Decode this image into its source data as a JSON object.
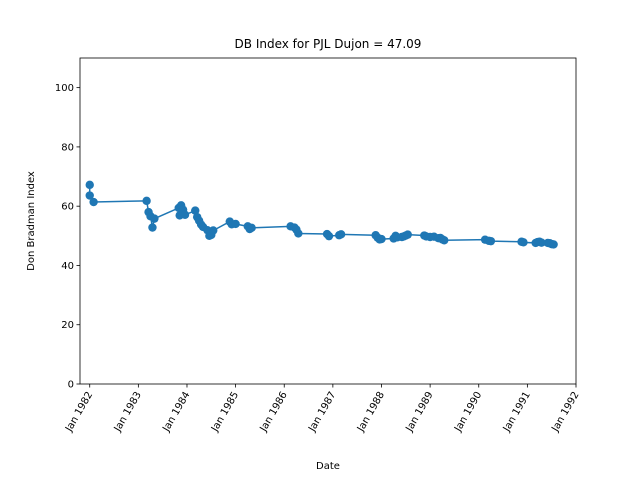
{
  "chart_data": {
    "type": "line",
    "title": "DB Index for PJL Dujon = 47.09",
    "xlabel": "Date",
    "ylabel": "Don Bradman Index",
    "xlim": [
      1981.8,
      1992.0
    ],
    "ylim": [
      0,
      110
    ],
    "yticks": [
      0,
      20,
      40,
      60,
      80,
      100
    ],
    "xticks": [
      {
        "label": "Jan 1982",
        "value": 1982.0
      },
      {
        "label": "Jan 1983",
        "value": 1983.0
      },
      {
        "label": "Jan 1984",
        "value": 1984.0
      },
      {
        "label": "Jan 1985",
        "value": 1985.0
      },
      {
        "label": "Jan 1986",
        "value": 1986.0
      },
      {
        "label": "Jan 1987",
        "value": 1987.0
      },
      {
        "label": "Jan 1988",
        "value": 1988.0
      },
      {
        "label": "Jan 1989",
        "value": 1989.0
      },
      {
        "label": "Jan 1990",
        "value": 1990.0
      },
      {
        "label": "Jan 1991",
        "value": 1991.0
      },
      {
        "label": "Jan 1992",
        "value": 1992.0
      }
    ],
    "color": "#1f77b4",
    "series": [
      {
        "name": "DB Index",
        "x": [
          1982.0,
          1982.0,
          1982.08,
          1983.17,
          1983.21,
          1983.25,
          1983.29,
          1983.33,
          1983.83,
          1983.85,
          1983.88,
          1983.92,
          1983.96,
          1984.17,
          1984.21,
          1984.25,
          1984.29,
          1984.33,
          1984.42,
          1984.46,
          1984.5,
          1984.54,
          1984.88,
          1984.92,
          1985.0,
          1985.25,
          1985.29,
          1985.33,
          1986.13,
          1986.21,
          1986.25,
          1986.29,
          1986.88,
          1986.92,
          1987.13,
          1987.17,
          1987.88,
          1987.92,
          1987.96,
          1988.0,
          1988.25,
          1988.29,
          1988.33,
          1988.42,
          1988.46,
          1988.5,
          1988.54,
          1988.88,
          1988.92,
          1989.0,
          1989.08,
          1989.17,
          1989.21,
          1989.25,
          1989.29,
          1990.13,
          1990.21,
          1990.25,
          1990.88,
          1990.92,
          1991.17,
          1991.21,
          1991.25,
          1991.29,
          1991.42,
          1991.46,
          1991.5,
          1991.54
        ],
        "values": [
          67.2,
          63.6,
          61.4,
          61.8,
          58.0,
          56.6,
          52.8,
          55.8,
          59.4,
          56.9,
          60.3,
          58.8,
          57.1,
          58.5,
          56.3,
          55.1,
          53.8,
          53.0,
          51.9,
          50.0,
          50.3,
          51.8,
          54.8,
          53.9,
          54.0,
          53.2,
          52.3,
          52.7,
          53.2,
          52.8,
          52.1,
          50.8,
          50.6,
          49.9,
          50.2,
          50.5,
          50.2,
          49.4,
          48.8,
          48.9,
          49.1,
          50.0,
          49.5,
          49.6,
          49.8,
          50.1,
          50.4,
          50.1,
          49.8,
          49.6,
          49.7,
          49.2,
          49.3,
          48.8,
          48.5,
          48.7,
          48.3,
          48.2,
          48.0,
          47.8,
          47.6,
          47.9,
          48.0,
          47.7,
          47.6,
          47.5,
          47.2,
          47.1
        ]
      }
    ]
  }
}
